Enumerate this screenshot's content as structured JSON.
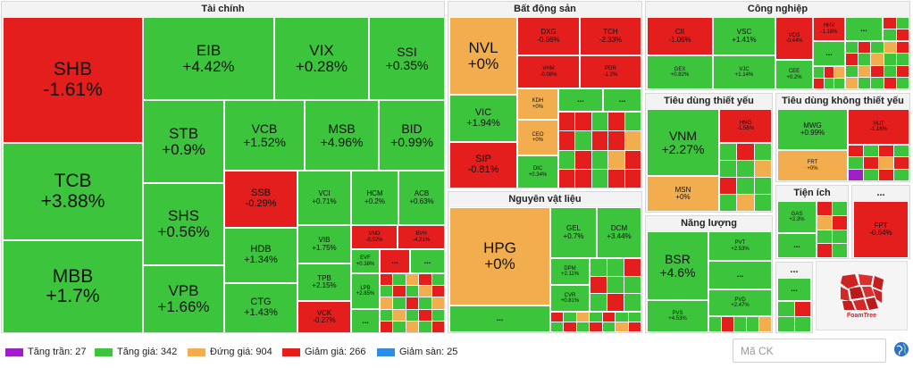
{
  "sectors": {
    "tai_chinh": "Tài chính",
    "bat_dong_san": "Bất động sản",
    "cong_nghiep": "Công nghiệp",
    "nguyen_vat_lieu": "Nguyên vật liệu",
    "tieu_dung_thiet_yeu": "Tiêu dùng thiết yếu",
    "tieu_dung_khong_thiet_yeu": "Tiêu dùng không thiết yếu",
    "nang_luong": "Năng lượng",
    "tien_ich": "Tiện ích",
    "other_top": "...",
    "other_bottom": "..."
  },
  "tiles": {
    "SHB": {
      "sym": "SHB",
      "chg": "-1.61%"
    },
    "TCB": {
      "sym": "TCB",
      "chg": "+3.88%"
    },
    "MBB": {
      "sym": "MBB",
      "chg": "+1.7%"
    },
    "EIB": {
      "sym": "EIB",
      "chg": "+4.42%"
    },
    "VIX": {
      "sym": "VIX",
      "chg": "+0.28%"
    },
    "SSI": {
      "sym": "SSI",
      "chg": "+0.35%"
    },
    "STB": {
      "sym": "STB",
      "chg": "+0.9%"
    },
    "VCB": {
      "sym": "VCB",
      "chg": "+1.52%"
    },
    "MSB": {
      "sym": "MSB",
      "chg": "+4.96%"
    },
    "BID": {
      "sym": "BID",
      "chg": "+0.99%"
    },
    "SHS": {
      "sym": "SHS",
      "chg": "+0.56%"
    },
    "SSB": {
      "sym": "SSB",
      "chg": "-0.29%"
    },
    "VCI": {
      "sym": "VCI",
      "chg": "+0.71%"
    },
    "HCM": {
      "sym": "HCM",
      "chg": "+0.2%"
    },
    "ACB": {
      "sym": "ACB",
      "chg": "+0.63%"
    },
    "VPB": {
      "sym": "VPB",
      "chg": "+1.66%"
    },
    "HDB": {
      "sym": "HDB",
      "chg": "+1.34%"
    },
    "VIB": {
      "sym": "VIB",
      "chg": "+1.75%"
    },
    "VND": {
      "sym": "VND",
      "chg": "-0.52%"
    },
    "BVH": {
      "sym": "BVH",
      "chg": "-4.31%"
    },
    "EVF": {
      "sym": "EVF",
      "chg": "+0.38%"
    },
    "CTG": {
      "sym": "CTG",
      "chg": "+1.43%"
    },
    "TPB": {
      "sym": "TPB",
      "chg": "+2.15%"
    },
    "LPB": {
      "sym": "LPB",
      "chg": "+2.85%"
    },
    "VCK": {
      "sym": "VCK",
      "chg": "-0.27%"
    },
    "NVL": {
      "sym": "NVL",
      "chg": "+0%"
    },
    "DXG": {
      "sym": "DXG",
      "chg": "-0.66%"
    },
    "TCH": {
      "sym": "TCH",
      "chg": "-2.33%"
    },
    "VHM": {
      "sym": "VHM",
      "chg": "-0.08%"
    },
    "PDR": {
      "sym": "PDR",
      "chg": "-1.2%"
    },
    "VIC": {
      "sym": "VIC",
      "chg": "+1.94%"
    },
    "KDH": {
      "sym": "KDH",
      "chg": "+0%"
    },
    "CEO": {
      "sym": "CEO",
      "chg": "+0%"
    },
    "SIP": {
      "sym": "SIP",
      "chg": "-0.81%"
    },
    "DIC": {
      "sym": "DIC",
      "chg": "+0.34%"
    },
    "HPG": {
      "sym": "HPG",
      "chg": "+0%"
    },
    "GEL": {
      "sym": "GEL",
      "chg": "+0.7%"
    },
    "DCM": {
      "sym": "DCM",
      "chg": "+3.44%"
    },
    "DPM": {
      "sym": "DPM",
      "chg": "+2.11%"
    },
    "CVR": {
      "sym": "CVR",
      "chg": "+0.81%"
    },
    "CII": {
      "sym": "CII",
      "chg": "-1.06%"
    },
    "VSC": {
      "sym": "VSC",
      "chg": "+1.41%"
    },
    "VCG": {
      "sym": "VCG",
      "chg": "-0.44%"
    },
    "HHV": {
      "sym": "HHV",
      "chg": "-1.16%"
    },
    "GEX": {
      "sym": "GEX",
      "chg": "+0.82%"
    },
    "VJC": {
      "sym": "VJC",
      "chg": "+1.14%"
    },
    "CEE": {
      "sym": "CEE",
      "chg": "+0.2%"
    },
    "VNM": {
      "sym": "VNM",
      "chg": "+2.27%"
    },
    "HNG": {
      "sym": "HNG",
      "chg": "-1.56%"
    },
    "MSN": {
      "sym": "MSN",
      "chg": "+0%"
    },
    "MWG": {
      "sym": "MWG",
      "chg": "+0.99%"
    },
    "HUT": {
      "sym": "HUT",
      "chg": "-1.16%"
    },
    "FRT": {
      "sym": "FRT",
      "chg": "+0%"
    },
    "GAS": {
      "sym": "GAS",
      "chg": "+2.3%"
    },
    "FPT": {
      "sym": "FPT",
      "chg": "-0.64%"
    },
    "BSR": {
      "sym": "BSR",
      "chg": "+4.6%"
    },
    "PVT": {
      "sym": "PVT",
      "chg": "+2.53%"
    },
    "PVD": {
      "sym": "PVD",
      "chg": "+2.47%"
    },
    "PVS": {
      "sym": "PVS",
      "chg": "+4.53%"
    }
  },
  "more_label": "...",
  "legend": {
    "ceiling": {
      "label": "Tăng trần: 27",
      "color": "#a020c8"
    },
    "up": {
      "label": "Tăng giá: 342",
      "color": "#3dc43d"
    },
    "flat": {
      "label": "Đứng giá: 904",
      "color": "#f2ae4e"
    },
    "down": {
      "label": "Giảm giá: 266",
      "color": "#e41d1d"
    },
    "floor": {
      "label": "Giảm sàn: 25",
      "color": "#2f8ee0"
    }
  },
  "search": {
    "placeholder": "Mã CK"
  },
  "logo": {
    "text": "FoamTree",
    "icon": "foamtree-logo"
  },
  "icons": {
    "globe": "globe-icon"
  }
}
